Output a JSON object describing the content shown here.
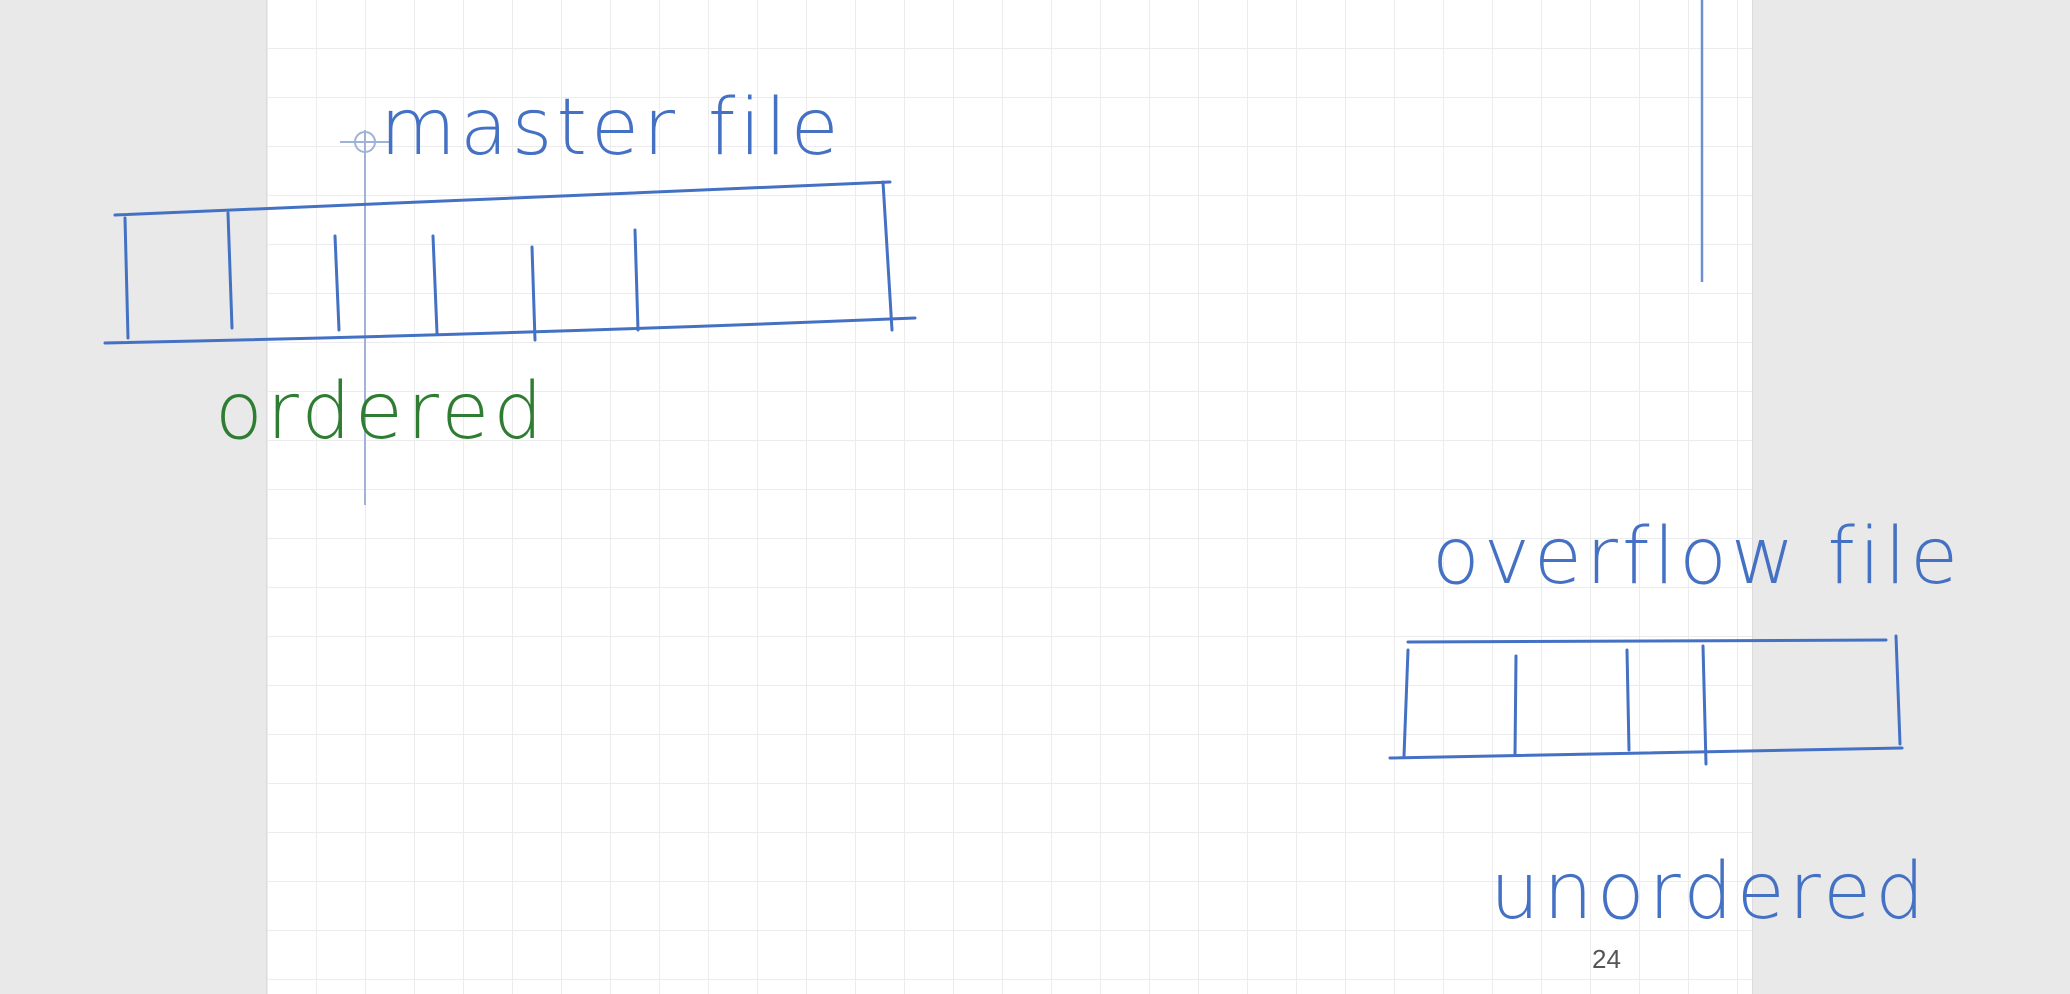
{
  "notes": {
    "master_label": "master file",
    "ordered_label": "ordered",
    "overflow_label": "overflow file",
    "unordered_label": "unordered"
  },
  "page": {
    "number": "24"
  },
  "colors": {
    "background": "#e9e9ea",
    "page": "#ffffff",
    "grid": "#ececee",
    "ink_blue": "#4471c4",
    "ink_green": "#2e7d32"
  }
}
